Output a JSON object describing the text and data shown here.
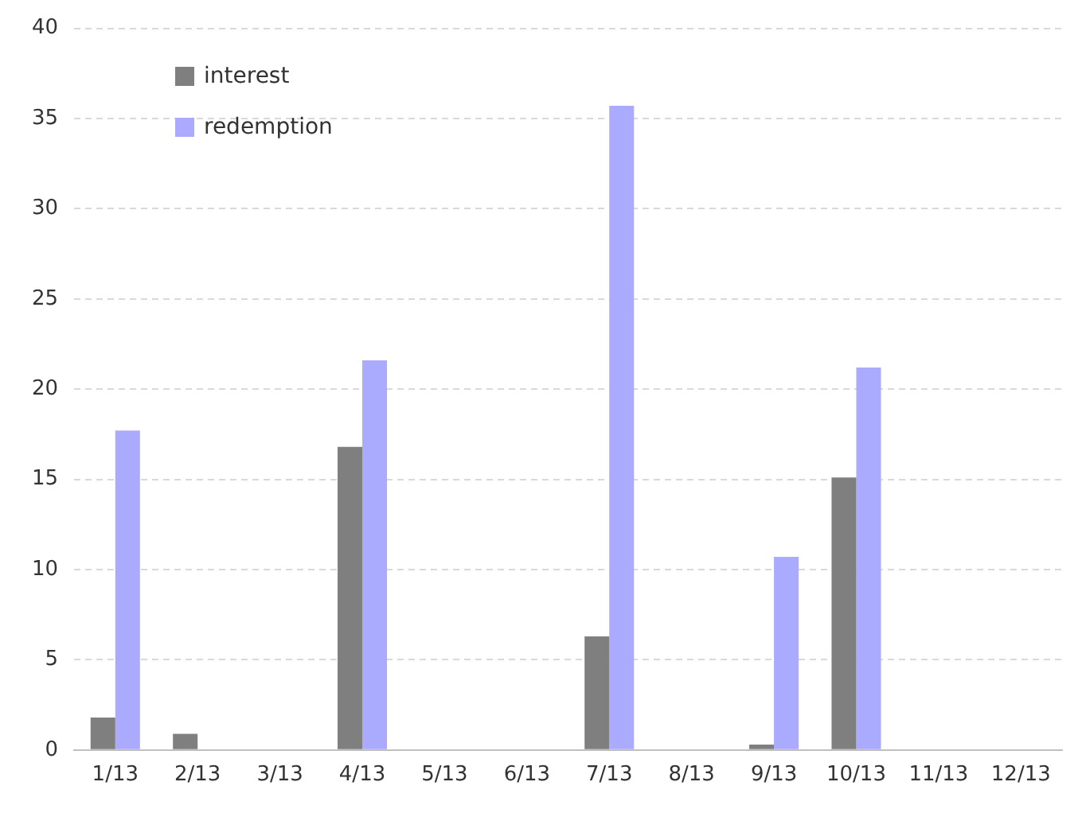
{
  "chart_data": {
    "type": "bar",
    "categories": [
      "1/13",
      "2/13",
      "3/13",
      "4/13",
      "5/13",
      "6/13",
      "7/13",
      "8/13",
      "9/13",
      "10/13",
      "11/13",
      "12/13"
    ],
    "series": [
      {
        "name": "interest",
        "color": "#7f7f7f",
        "values": [
          1.8,
          0.9,
          0,
          16.8,
          0,
          0,
          6.3,
          0,
          0.3,
          15.1,
          0,
          0
        ]
      },
      {
        "name": "redemption",
        "color": "#aaaaff",
        "values": [
          17.7,
          0,
          0,
          21.6,
          0,
          0,
          35.7,
          0,
          10.7,
          21.2,
          0,
          0
        ]
      }
    ],
    "ylim": [
      0,
      40
    ],
    "yticks": [
      0,
      5,
      10,
      15,
      20,
      25,
      30,
      35,
      40
    ],
    "grid": "y",
    "legend": "top left"
  }
}
